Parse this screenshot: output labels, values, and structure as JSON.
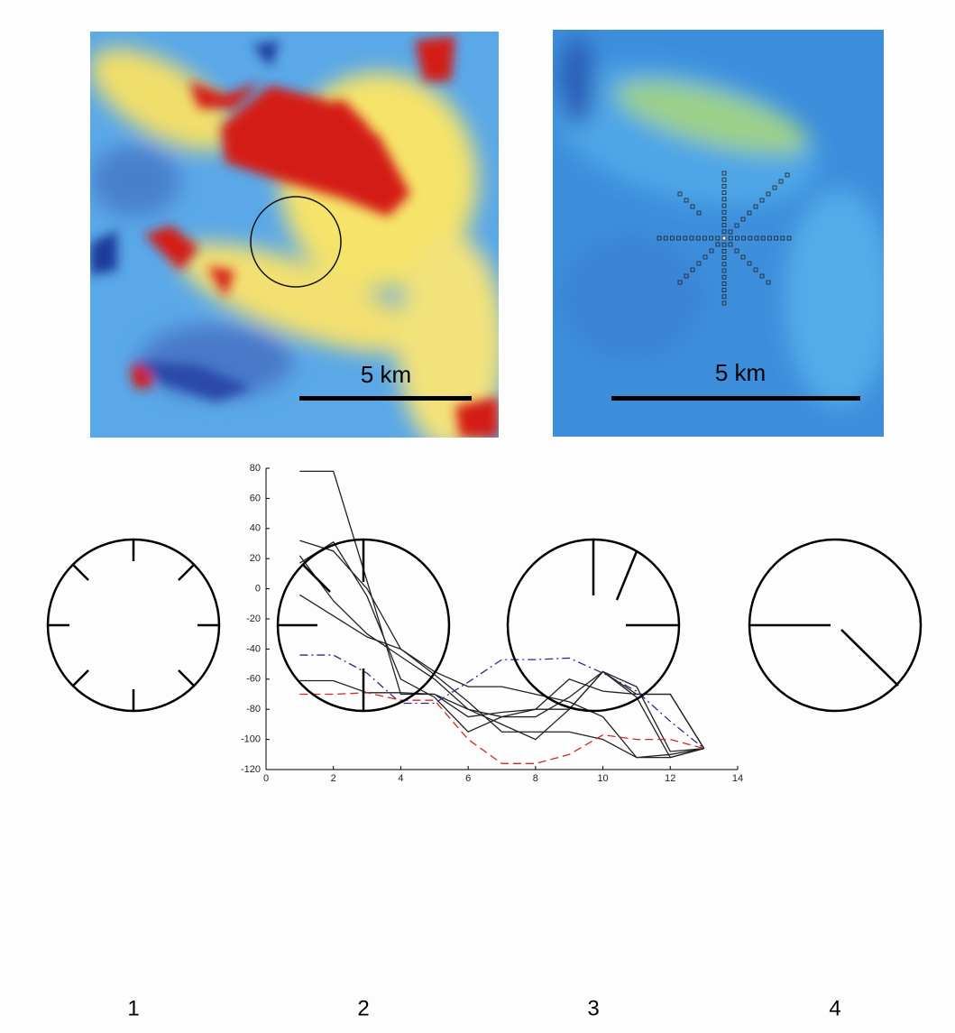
{
  "maps": [
    {
      "scale_label": "5 km"
    },
    {
      "scale_label": "5 km"
    }
  ],
  "chart_data": {
    "type": "line",
    "x": [
      1,
      2,
      3,
      4,
      5,
      6,
      7,
      8,
      9,
      10,
      11,
      12,
      13
    ],
    "series": [
      {
        "color": "#222222",
        "style": "solid",
        "values": [
          78,
          78,
          5,
          -70,
          -70,
          -80,
          -85,
          -85,
          -72,
          -55,
          -70,
          -70,
          -106
        ]
      },
      {
        "color": "#222222",
        "style": "solid",
        "values": [
          32,
          25,
          0,
          -40,
          -55,
          -65,
          -65,
          -70,
          -75,
          -85,
          -112,
          -112,
          -106
        ]
      },
      {
        "color": "#222222",
        "style": "solid",
        "values": [
          22,
          -8,
          -30,
          -45,
          -60,
          -80,
          -90,
          -100,
          -80,
          -55,
          -65,
          -108,
          -106
        ]
      },
      {
        "color": "#222222",
        "style": "solid",
        "values": [
          17,
          31,
          -5,
          -60,
          -72,
          -95,
          -85,
          -80,
          -80,
          -55,
          -72,
          -112,
          -106
        ]
      },
      {
        "color": "#222222",
        "style": "solid",
        "values": [
          -4,
          -18,
          -32,
          -40,
          -57,
          -75,
          -95,
          -95,
          -95,
          -100,
          -112,
          -110,
          -106
        ]
      },
      {
        "color": "#222222",
        "style": "solid",
        "values": [
          -61,
          -61,
          -69,
          -69,
          -70,
          -85,
          -82,
          -80,
          -60,
          -68,
          -70,
          -70,
          -106
        ]
      },
      {
        "color": "#2a2a8a",
        "style": "dashdot",
        "values": [
          -44,
          -44,
          -56,
          -76,
          -76,
          -62,
          -47,
          -47,
          -46,
          -56,
          -68,
          -88,
          -106
        ]
      },
      {
        "color": "#d42a1a",
        "style": "dashed",
        "values": [
          -70,
          -70,
          -69,
          -74,
          -74,
          -100,
          -116,
          -116,
          -110,
          -97,
          -100,
          -100,
          -106
        ]
      }
    ],
    "xlim": [
      0,
      14
    ],
    "xticks": [
      0,
      2,
      4,
      6,
      8,
      10,
      12,
      14
    ],
    "ylim": [
      -120,
      80
    ],
    "yticks": [
      -120,
      -100,
      -80,
      -60,
      -40,
      -20,
      0,
      20,
      40,
      60,
      80
    ]
  },
  "dials": [
    {
      "label": "1"
    },
    {
      "label": "2"
    },
    {
      "label": "3"
    },
    {
      "label": "4"
    }
  ]
}
